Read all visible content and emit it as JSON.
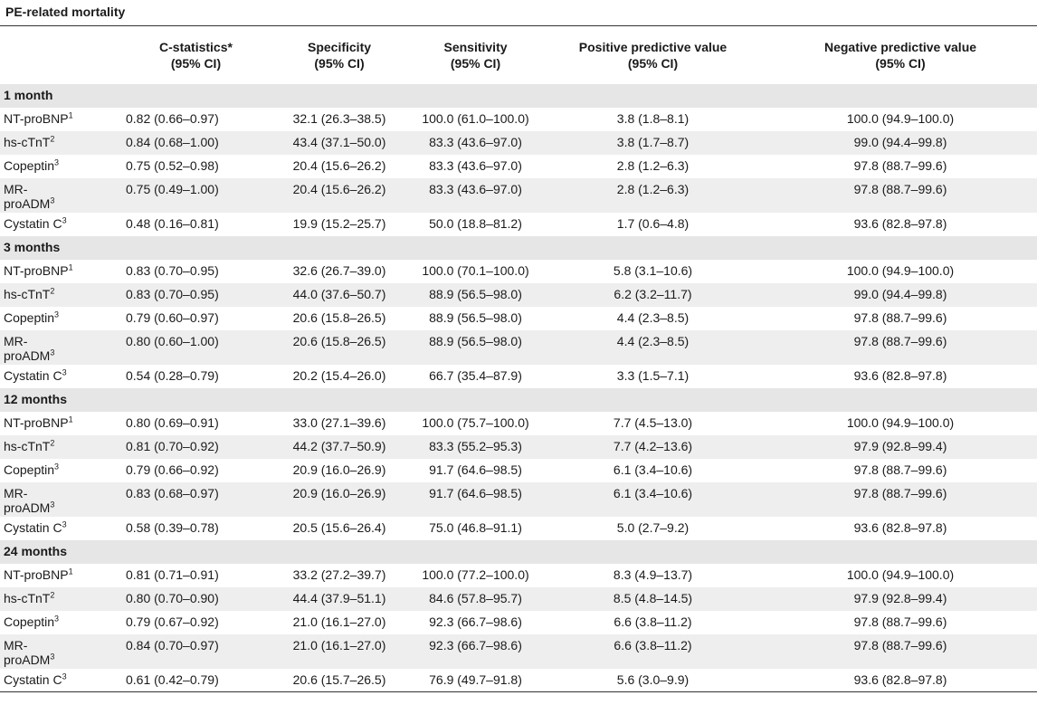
{
  "title": "PE-related mortality",
  "columns": [
    {
      "line1": "",
      "line2": ""
    },
    {
      "line1": "C-statistics*",
      "line2": "(95% CI)"
    },
    {
      "line1": "Specificity",
      "line2": "(95% CI)"
    },
    {
      "line1": "Sensitivity",
      "line2": "(95% CI)"
    },
    {
      "line1": "Positive predictive value",
      "line2": "(95% CI)"
    },
    {
      "line1": "Negative predictive value",
      "line2": "(95% CI)"
    }
  ],
  "sections": [
    {
      "label": "1 month",
      "rows": [
        {
          "name": "NT-proBNP",
          "sup": "1",
          "cs": "0.82 (0.66–0.97)",
          "sp": "32.1 (26.3–38.5)",
          "se": "100.0 (61.0–100.0)",
          "ppv": "3.8 (1.8–8.1)",
          "npv": "100.0 (94.9–100.0)"
        },
        {
          "name": "hs-cTnT",
          "sup": "2",
          "cs": "0.84 (0.68–1.00)",
          "sp": "43.4 (37.1–50.0)",
          "se": "83.3 (43.6–97.0)",
          "ppv": "3.8 (1.7–8.7)",
          "npv": "99.0 (94.4–99.8)"
        },
        {
          "name": "Copeptin",
          "sup": "3",
          "cs": "0.75 (0.52–0.98)",
          "sp": "20.4 (15.6–26.2)",
          "se": "83.3 (43.6–97.0)",
          "ppv": "2.8 (1.2–6.3)",
          "npv": "97.8 (88.7–99.6)"
        },
        {
          "name": "MR-proADM",
          "sup": "3",
          "cs": "0.75 (0.49–1.00)",
          "sp": "20.4 (15.6–26.2)",
          "se": "83.3 (43.6–97.0)",
          "ppv": "2.8 (1.2–6.3)",
          "npv": "97.8 (88.7–99.6)"
        },
        {
          "name": "Cystatin C",
          "sup": "3",
          "cs": "0.48 (0.16–0.81)",
          "sp": "19.9 (15.2–25.7)",
          "se": "50.0 (18.8–81.2)",
          "ppv": "1.7 (0.6–4.8)",
          "npv": "93.6 (82.8–97.8)"
        }
      ]
    },
    {
      "label": "3 months",
      "rows": [
        {
          "name": "NT-proBNP",
          "sup": "1",
          "cs": "0.83 (0.70–0.95)",
          "sp": "32.6 (26.7–39.0)",
          "se": "100.0 (70.1–100.0)",
          "ppv": "5.8 (3.1–10.6)",
          "npv": "100.0 (94.9–100.0)"
        },
        {
          "name": "hs-cTnT",
          "sup": "2",
          "cs": "0.83 (0.70–0.95)",
          "sp": "44.0 (37.6–50.7)",
          "se": "88.9 (56.5–98.0)",
          "ppv": "6.2 (3.2–11.7)",
          "npv": "99.0 (94.4–99.8)"
        },
        {
          "name": "Copeptin",
          "sup": "3",
          "cs": "0.79 (0.60–0.97)",
          "sp": "20.6 (15.8–26.5)",
          "se": "88.9 (56.5–98.0)",
          "ppv": "4.4 (2.3–8.5)",
          "npv": "97.8 (88.7–99.6)"
        },
        {
          "name": "MR-proADM",
          "sup": "3",
          "cs": "0.80 (0.60–1.00)",
          "sp": "20.6 (15.8–26.5)",
          "se": "88.9 (56.5–98.0)",
          "ppv": "4.4 (2.3–8.5)",
          "npv": "97.8 (88.7–99.6)"
        },
        {
          "name": "Cystatin C",
          "sup": "3",
          "cs": "0.54 (0.28–0.79)",
          "sp": "20.2 (15.4–26.0)",
          "se": "66.7 (35.4–87.9)",
          "ppv": "3.3 (1.5–7.1)",
          "npv": "93.6 (82.8–97.8)"
        }
      ]
    },
    {
      "label": "12 months",
      "rows": [
        {
          "name": "NT-proBNP",
          "sup": "1",
          "cs": "0.80 (0.69–0.91)",
          "sp": "33.0 (27.1–39.6)",
          "se": "100.0 (75.7–100.0)",
          "ppv": "7.7 (4.5–13.0)",
          "npv": "100.0 (94.9–100.0)"
        },
        {
          "name": "hs-cTnT",
          "sup": "2",
          "cs": "0.81 (0.70–0.92)",
          "sp": "44.2 (37.7–50.9)",
          "se": "83.3 (55.2–95.3)",
          "ppv": "7.7 (4.2–13.6)",
          "npv": "97.9 (92.8–99.4)"
        },
        {
          "name": "Copeptin",
          "sup": "3",
          "cs": "0.79 (0.66–0.92)",
          "sp": "20.9 (16.0–26.9)",
          "se": "91.7 (64.6–98.5)",
          "ppv": "6.1 (3.4–10.6)",
          "npv": "97.8 (88.7–99.6)"
        },
        {
          "name": "MR-proADM",
          "sup": "3",
          "cs": "0.83 (0.68–0.97)",
          "sp": "20.9 (16.0–26.9)",
          "se": "91.7 (64.6–98.5)",
          "ppv": "6.1 (3.4–10.6)",
          "npv": "97.8 (88.7–99.6)"
        },
        {
          "name": "Cystatin C",
          "sup": "3",
          "cs": "0.58 (0.39–0.78)",
          "sp": "20.5 (15.6–26.4)",
          "se": "75.0 (46.8–91.1)",
          "ppv": "5.0 (2.7–9.2)",
          "npv": "93.6 (82.8–97.8)"
        }
      ]
    },
    {
      "label": "24 months",
      "rows": [
        {
          "name": "NT-proBNP",
          "sup": "1",
          "cs": "0.81 (0.71–0.91)",
          "sp": "33.2 (27.2–39.7)",
          "se": "100.0 (77.2–100.0)",
          "ppv": "8.3 (4.9–13.7)",
          "npv": "100.0 (94.9–100.0)"
        },
        {
          "name": "hs-cTnT",
          "sup": "2",
          "cs": "0.80 (0.70–0.90)",
          "sp": "44.4 (37.9–51.1)",
          "se": "84.6 (57.8–95.7)",
          "ppv": "8.5 (4.8–14.5)",
          "npv": "97.9 (92.8–99.4)"
        },
        {
          "name": "Copeptin",
          "sup": "3",
          "cs": "0.79 (0.67–0.92)",
          "sp": "21.0 (16.1–27.0)",
          "se": "92.3 (66.7–98.6)",
          "ppv": "6.6 (3.8–11.2)",
          "npv": "97.8 (88.7–99.6)"
        },
        {
          "name": "MR-proADM",
          "sup": "3",
          "cs": "0.84 (0.70–0.97)",
          "sp": "21.0 (16.1–27.0)",
          "se": "92.3 (66.7–98.6)",
          "ppv": "6.6 (3.8–11.2)",
          "npv": "97.8 (88.7–99.6)"
        },
        {
          "name": "Cystatin C",
          "sup": "3",
          "cs": "0.61 (0.42–0.79)",
          "sp": "20.6 (15.7–26.5)",
          "se": "76.9 (49.7–91.8)",
          "ppv": "5.6 (3.0–9.9)",
          "npv": "93.6 (82.8–97.8)"
        }
      ]
    }
  ]
}
